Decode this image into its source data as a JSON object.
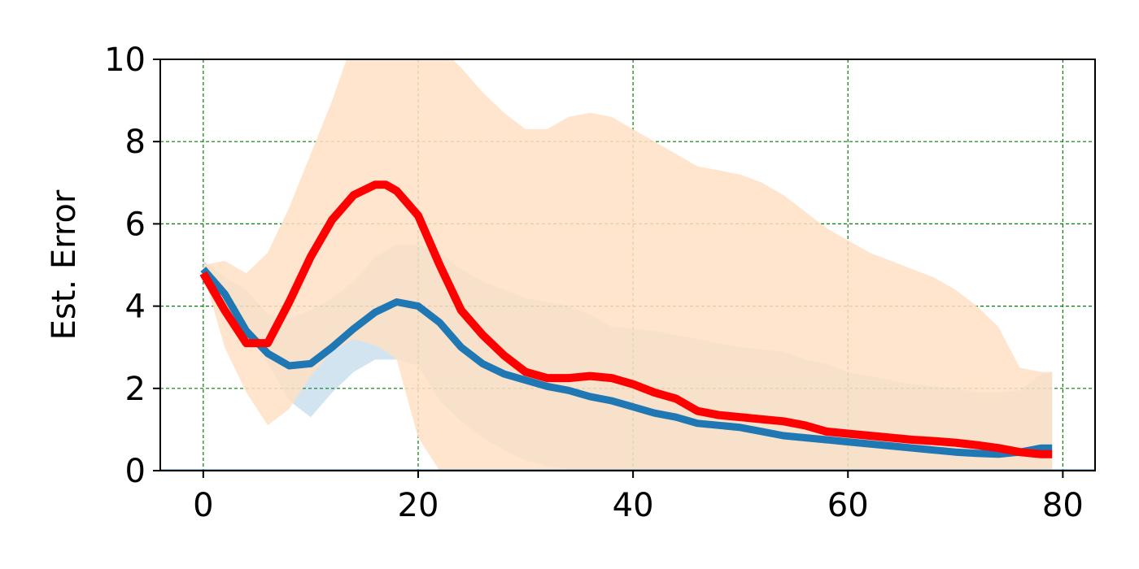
{
  "chart_data": {
    "type": "line",
    "title": "",
    "xlabel": "",
    "ylabel": "Est. Error",
    "xlim": [
      -4,
      83
    ],
    "ylim": [
      0,
      10
    ],
    "xticks": [
      "0",
      "20",
      "40",
      "60",
      "80"
    ],
    "yticks": [
      "0",
      "2",
      "4",
      "6",
      "8",
      "10"
    ],
    "grid": true,
    "colors": {
      "blue_line": "#1f77b4",
      "blue_band": "#1f77b4",
      "red_line": "#ff0000",
      "orange_band": "#ffe0c4",
      "grid": "#008000"
    },
    "series": [
      {
        "x": [
          0,
          2,
          4,
          6,
          8,
          10,
          12,
          14,
          16,
          18,
          20,
          22,
          24,
          26,
          28,
          30,
          32,
          34,
          36,
          38,
          40,
          42,
          44,
          46,
          48,
          50,
          52,
          54,
          56,
          58,
          60,
          62,
          64,
          66,
          68,
          70,
          72,
          74,
          76,
          78,
          79
        ],
        "values": [
          4.9,
          4.3,
          3.4,
          2.85,
          2.55,
          2.6,
          3.0,
          3.45,
          3.85,
          4.1,
          4.0,
          3.6,
          3.0,
          2.6,
          2.35,
          2.2,
          2.05,
          1.95,
          1.8,
          1.7,
          1.55,
          1.4,
          1.3,
          1.15,
          1.1,
          1.05,
          0.95,
          0.85,
          0.8,
          0.75,
          0.7,
          0.65,
          0.6,
          0.55,
          0.5,
          0.45,
          0.42,
          0.4,
          0.45,
          0.55,
          0.55
        ],
        "lower": [
          4.9,
          3.8,
          3.4,
          2.6,
          1.7,
          1.3,
          1.9,
          2.4,
          2.7,
          2.7,
          2.55,
          1.7,
          1.2,
          0.8,
          0.5,
          0.25,
          0.1,
          0.05,
          0.05,
          0.05,
          0.05,
          0.05,
          0.05,
          0.05,
          0.05,
          0.05,
          0.05,
          0.05,
          0.05,
          0.05,
          0.05,
          0.05,
          0.05,
          0.05,
          0.05,
          0.05,
          0.05,
          0.05,
          0.05,
          0.05,
          0.05
        ],
        "upper": [
          5.1,
          4.7,
          4.4,
          3.8,
          3.7,
          3.9,
          4.2,
          4.6,
          5.2,
          5.5,
          5.5,
          5.3,
          4.9,
          4.6,
          4.4,
          4.2,
          4.1,
          4.0,
          3.8,
          3.5,
          3.45,
          3.4,
          3.3,
          3.2,
          3.1,
          3.0,
          2.95,
          2.9,
          2.7,
          2.6,
          2.4,
          2.3,
          2.2,
          2.1,
          2.05,
          2.0,
          1.9,
          1.9,
          1.95,
          2.35,
          2.4
        ]
      },
      {
        "x": [
          0,
          2,
          4,
          6,
          8,
          10,
          12,
          14,
          16,
          17,
          18,
          20,
          22,
          24,
          26,
          28,
          30,
          32,
          34,
          36,
          38,
          40,
          42,
          44,
          46,
          48,
          50,
          52,
          54,
          56,
          58,
          60,
          62,
          64,
          66,
          68,
          70,
          72,
          74,
          76,
          78,
          79
        ],
        "values": [
          4.8,
          3.9,
          3.1,
          3.1,
          4.1,
          5.2,
          6.1,
          6.7,
          6.95,
          6.95,
          6.8,
          6.2,
          5.0,
          3.9,
          3.3,
          2.8,
          2.4,
          2.25,
          2.25,
          2.3,
          2.25,
          2.1,
          1.9,
          1.75,
          1.45,
          1.35,
          1.3,
          1.25,
          1.2,
          1.1,
          0.95,
          0.9,
          0.85,
          0.8,
          0.75,
          0.72,
          0.68,
          0.62,
          0.55,
          0.45,
          0.4,
          0.4
        ],
        "lower": [
          4.8,
          3.0,
          1.9,
          1.1,
          1.5,
          2.3,
          2.9,
          3.2,
          3.05,
          2.9,
          2.7,
          0.8,
          0.0,
          0,
          0,
          0,
          0,
          0,
          0,
          0,
          0,
          0,
          0,
          0,
          0,
          0,
          0,
          0,
          0,
          0,
          0,
          0,
          0,
          0,
          0,
          0,
          0,
          0,
          0,
          0,
          0,
          0
        ],
        "upper": [
          5.0,
          5.1,
          4.8,
          5.3,
          6.4,
          7.7,
          9.0,
          10.5,
          11.5,
          11.5,
          11.5,
          11.0,
          10.3,
          9.8,
          9.2,
          8.7,
          8.3,
          8.3,
          8.6,
          8.7,
          8.6,
          8.3,
          8.0,
          7.7,
          7.4,
          7.3,
          7.2,
          7.0,
          6.7,
          6.3,
          5.9,
          5.6,
          5.3,
          5.1,
          4.9,
          4.7,
          4.4,
          4.0,
          3.5,
          2.5,
          2.4,
          2.4
        ]
      }
    ]
  }
}
